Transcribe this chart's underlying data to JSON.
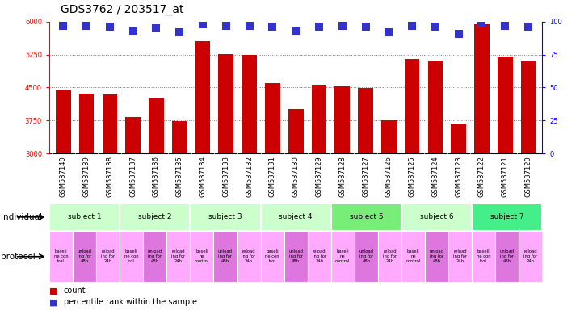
{
  "title": "GDS3762 / 203517_at",
  "samples": [
    "GSM537140",
    "GSM537139",
    "GSM537138",
    "GSM537137",
    "GSM537136",
    "GSM537135",
    "GSM537134",
    "GSM537133",
    "GSM537132",
    "GSM537131",
    "GSM537130",
    "GSM537129",
    "GSM537128",
    "GSM537127",
    "GSM537126",
    "GSM537125",
    "GSM537124",
    "GSM537123",
    "GSM537122",
    "GSM537121",
    "GSM537120"
  ],
  "bar_values": [
    4430,
    4360,
    4340,
    3830,
    4250,
    3740,
    5550,
    5260,
    5240,
    4600,
    4010,
    4570,
    4530,
    4490,
    3760,
    5160,
    5110,
    3690,
    5950,
    5200,
    5090
  ],
  "percentile_values": [
    97,
    97,
    96,
    93,
    95,
    92,
    98,
    97,
    97,
    96,
    93,
    96,
    97,
    96,
    92,
    97,
    96,
    91,
    99,
    97,
    96
  ],
  "bar_color": "#cc0000",
  "dot_color": "#3333cc",
  "ylim_left": [
    3000,
    6000
  ],
  "ylim_right": [
    0,
    100
  ],
  "yticks_left": [
    3000,
    3750,
    4500,
    5250,
    6000
  ],
  "yticks_right": [
    0,
    25,
    50,
    75,
    100
  ],
  "grid_values": [
    3750,
    4500,
    5250
  ],
  "subjects": [
    {
      "label": "subject 1",
      "start": 0,
      "end": 3,
      "color": "#ccffcc"
    },
    {
      "label": "subject 2",
      "start": 3,
      "end": 6,
      "color": "#ccffcc"
    },
    {
      "label": "subject 3",
      "start": 6,
      "end": 9,
      "color": "#ccffcc"
    },
    {
      "label": "subject 4",
      "start": 9,
      "end": 12,
      "color": "#ccffcc"
    },
    {
      "label": "subject 5",
      "start": 12,
      "end": 15,
      "color": "#77ee77"
    },
    {
      "label": "subject 6",
      "start": 15,
      "end": 18,
      "color": "#ccffcc"
    },
    {
      "label": "subject 7",
      "start": 18,
      "end": 21,
      "color": "#44ee88"
    }
  ],
  "protocols": [
    {
      "label": "baseli\nne con\ntrol",
      "color": "#ffaaff"
    },
    {
      "label": "unload\ning for\n48h",
      "color": "#dd77dd"
    },
    {
      "label": "reload\ning for\n24h",
      "color": "#ffaaff"
    },
    {
      "label": "baseli\nne con\ntrol",
      "color": "#ffaaff"
    },
    {
      "label": "unload\ning for\n48h",
      "color": "#dd77dd"
    },
    {
      "label": "reload\ning for\n24h",
      "color": "#ffaaff"
    },
    {
      "label": "baseli\nne\ncontrol",
      "color": "#ffaaff"
    },
    {
      "label": "unload\ning for\n48h",
      "color": "#dd77dd"
    },
    {
      "label": "reload\ning for\n24h",
      "color": "#ffaaff"
    },
    {
      "label": "baseli\nne con\ntrol",
      "color": "#ffaaff"
    },
    {
      "label": "unload\ning for\n48h",
      "color": "#dd77dd"
    },
    {
      "label": "reload\ning for\n24h",
      "color": "#ffaaff"
    },
    {
      "label": "baseli\nne\ncontrol",
      "color": "#ffaaff"
    },
    {
      "label": "unload\ning for\n48h",
      "color": "#dd77dd"
    },
    {
      "label": "reload\ning for\n24h",
      "color": "#ffaaff"
    },
    {
      "label": "baseli\nne\ncontrol",
      "color": "#ffaaff"
    },
    {
      "label": "unload\ning for\n48h",
      "color": "#dd77dd"
    },
    {
      "label": "reload\ning for\n24h",
      "color": "#ffaaff"
    },
    {
      "label": "baseli\nne con\ntrol",
      "color": "#ffaaff"
    },
    {
      "label": "unload\ning for\n48h",
      "color": "#dd77dd"
    },
    {
      "label": "reload\ning for\n24h",
      "color": "#ffaaff"
    }
  ],
  "individual_label": "individual",
  "protocol_label": "protocol",
  "legend_count_label": "count",
  "legend_percentile_label": "percentile rank within the sample",
  "bar_width": 0.65,
  "dot_size": 45,
  "dot_marker": "s",
  "title_fontsize": 10,
  "tick_fontsize": 6,
  "label_fontsize": 7.5,
  "background_color": "#ffffff"
}
